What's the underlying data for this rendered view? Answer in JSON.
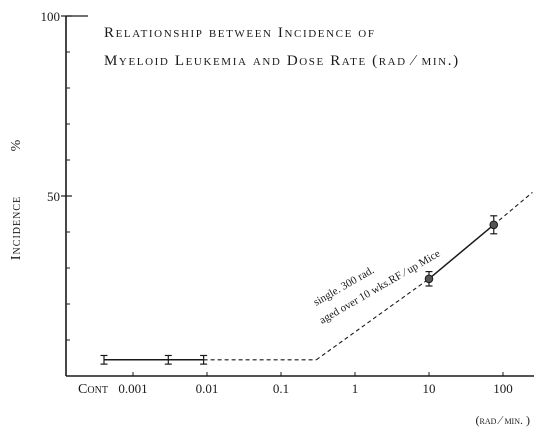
{
  "chart_data": {
    "type": "line",
    "title_line1": "Relationship between Incidence of",
    "title_line2": "Myeloid Leukemia and Dose Rate (rad ∕ min.)",
    "ylabel": "Incidence",
    "ylabel_unit": "%",
    "xlabel": "(rad ∕ min. )",
    "x_scale": "log",
    "ylim": [
      0,
      100
    ],
    "y_ticks": [
      {
        "value": 100,
        "label": "100"
      },
      {
        "value": 50,
        "label": "50"
      }
    ],
    "x_ticks": [
      "Cont",
      "0.001",
      "0.01",
      "0.1",
      "1",
      "10",
      "100"
    ],
    "annotation_line1": "single.  300  rad.",
    "annotation_line2": "aged  over  10  wks.RF ∕ up  Mice",
    "series": [
      {
        "points": [
          {
            "x": "Cont",
            "y": 4.5,
            "err": 1.2
          },
          {
            "x": 0.003,
            "y": 4.5,
            "err": 1.2
          },
          {
            "x": 0.009,
            "y": 4.5,
            "err": 1.2
          }
        ]
      },
      {
        "points": [
          {
            "x": 10,
            "y": 27,
            "err": 2.0
          },
          {
            "x": 75,
            "y": 42,
            "err": 2.5
          }
        ]
      }
    ],
    "dashed_segments": [
      [
        {
          "x": 0.009,
          "y": 4.5
        },
        {
          "x": 0.3,
          "y": 4.5
        }
      ],
      [
        {
          "x": 0.3,
          "y": 4.5
        },
        {
          "x": 10,
          "y": 27
        }
      ],
      [
        {
          "x": 75,
          "y": 42
        },
        {
          "x": 250,
          "y": 51
        }
      ]
    ]
  }
}
